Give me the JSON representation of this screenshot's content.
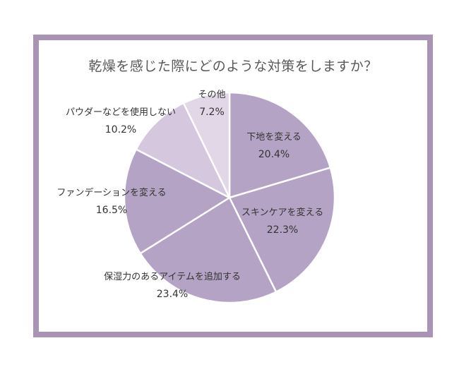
{
  "chart_data": {
    "type": "pie",
    "title": "乾燥を感じた際にどのような対策をしますか？",
    "start_angle_deg": 0,
    "direction": "clockwise",
    "slices": [
      {
        "label": "下地を変える",
        "value": 20.4,
        "value_label": "20.4%",
        "color": "#b4a3c4"
      },
      {
        "label": "スキンケアを変える",
        "value": 22.3,
        "value_label": "22.3%",
        "color": "#b4a3c4"
      },
      {
        "label": "保湿力のあるアイテムを追加する",
        "value": 23.4,
        "value_label": "23.4%",
        "color": "#b4a3c4"
      },
      {
        "label": "ファンデーションを変える",
        "value": 16.5,
        "value_label": "16.5%",
        "color": "#b4a3c4"
      },
      {
        "label": "パウダーなどを使用しない",
        "value": 10.2,
        "value_label": "10.2%",
        "color": "#d4c7de"
      },
      {
        "label": "その他",
        "value": 7.2,
        "value_label": "7.2%",
        "color": "#e2d7e7"
      }
    ],
    "frame_color": "#a994b6",
    "separator_color": "#ffffff"
  }
}
